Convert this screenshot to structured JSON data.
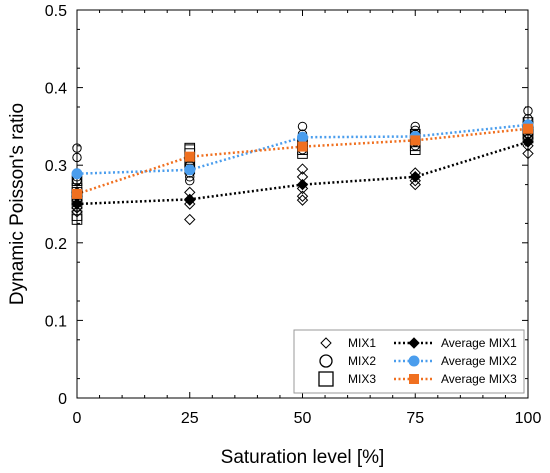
{
  "chart_data": {
    "type": "scatter",
    "xlabel": "Saturation level [%]",
    "ylabel": "Dynamic Poisson's ratio",
    "xlim": [
      0,
      100
    ],
    "ylim": [
      0,
      0.5
    ],
    "xticks": [
      "0",
      "25",
      "50",
      "75",
      "100"
    ],
    "yticks": [
      "0",
      "0.1",
      "0.2",
      "0.3",
      "0.4",
      "0.5"
    ],
    "grid": false,
    "legend_position": "bottom-right",
    "scatter_series": [
      {
        "name": "MIX1",
        "marker": "diamond-open",
        "color": "#000000",
        "points": [
          [
            0,
            0.24
          ],
          [
            0,
            0.245
          ],
          [
            0,
            0.25
          ],
          [
            0,
            0.255
          ],
          [
            0,
            0.26
          ],
          [
            0,
            0.265
          ],
          [
            25,
            0.23
          ],
          [
            25,
            0.25
          ],
          [
            25,
            0.255
          ],
          [
            25,
            0.265
          ],
          [
            50,
            0.255
          ],
          [
            50,
            0.26
          ],
          [
            50,
            0.27
          ],
          [
            50,
            0.285
          ],
          [
            50,
            0.295
          ],
          [
            75,
            0.275
          ],
          [
            75,
            0.28
          ],
          [
            75,
            0.285
          ],
          [
            75,
            0.29
          ],
          [
            100,
            0.315
          ],
          [
            100,
            0.325
          ],
          [
            100,
            0.33
          ],
          [
            100,
            0.335
          ],
          [
            100,
            0.34
          ]
        ]
      },
      {
        "name": "MIX2",
        "marker": "circle-open",
        "color": "#000000",
        "points": [
          [
            0,
            0.28
          ],
          [
            0,
            0.285
          ],
          [
            0,
            0.29
          ],
          [
            0,
            0.31
          ],
          [
            0,
            0.322
          ],
          [
            25,
            0.28
          ],
          [
            25,
            0.285
          ],
          [
            25,
            0.29
          ],
          [
            25,
            0.295
          ],
          [
            25,
            0.3
          ],
          [
            25,
            0.31
          ],
          [
            50,
            0.32
          ],
          [
            50,
            0.325
          ],
          [
            50,
            0.33
          ],
          [
            50,
            0.335
          ],
          [
            50,
            0.34
          ],
          [
            50,
            0.35
          ],
          [
            75,
            0.325
          ],
          [
            75,
            0.33
          ],
          [
            75,
            0.335
          ],
          [
            75,
            0.34
          ],
          [
            75,
            0.345
          ],
          [
            75,
            0.35
          ],
          [
            100,
            0.34
          ],
          [
            100,
            0.345
          ],
          [
            100,
            0.35
          ],
          [
            100,
            0.36
          ],
          [
            100,
            0.37
          ]
        ]
      },
      {
        "name": "MIX3",
        "marker": "square-open",
        "color": "#000000",
        "points": [
          [
            0,
            0.23
          ],
          [
            0,
            0.235
          ],
          [
            0,
            0.25
          ],
          [
            0,
            0.255
          ],
          [
            0,
            0.26
          ],
          [
            0,
            0.265
          ],
          [
            0,
            0.27
          ],
          [
            0,
            0.28
          ],
          [
            25,
            0.295
          ],
          [
            25,
            0.3
          ],
          [
            25,
            0.305
          ],
          [
            25,
            0.31
          ],
          [
            25,
            0.315
          ],
          [
            25,
            0.32
          ],
          [
            25,
            0.322
          ],
          [
            50,
            0.315
          ],
          [
            50,
            0.32
          ],
          [
            50,
            0.325
          ],
          [
            50,
            0.33
          ],
          [
            75,
            0.32
          ],
          [
            75,
            0.325
          ],
          [
            75,
            0.33
          ],
          [
            75,
            0.335
          ],
          [
            75,
            0.34
          ],
          [
            100,
            0.335
          ],
          [
            100,
            0.34
          ],
          [
            100,
            0.345
          ],
          [
            100,
            0.35
          ],
          [
            100,
            0.355
          ]
        ]
      }
    ],
    "average_series": [
      {
        "name": "Average MIX1",
        "marker": "diamond-filled",
        "color": "#000000",
        "x": [
          0,
          25,
          50,
          75,
          100
        ],
        "values": [
          0.25,
          0.256,
          0.275,
          0.285,
          0.33
        ]
      },
      {
        "name": "Average MIX2",
        "marker": "circle-filled",
        "color": "#4a9ded",
        "x": [
          0,
          25,
          50,
          75,
          100
        ],
        "values": [
          0.289,
          0.294,
          0.336,
          0.337,
          0.352
        ]
      },
      {
        "name": "Average MIX3",
        "marker": "square-filled",
        "color": "#f07020",
        "x": [
          0,
          25,
          50,
          75,
          100
        ],
        "values": [
          0.263,
          0.311,
          0.324,
          0.332,
          0.347
        ]
      }
    ]
  }
}
